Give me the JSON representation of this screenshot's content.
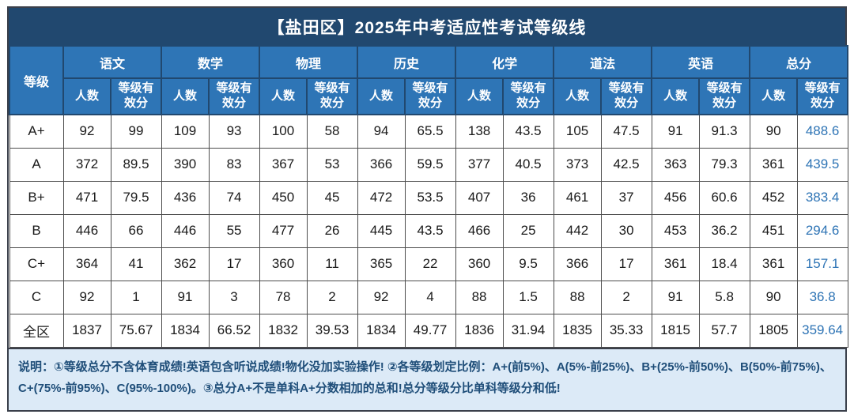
{
  "title": "【盐田区】2025年中考适应性考试等级线",
  "colors": {
    "title_bar": "#21486F",
    "header_bg": "#2E75B6",
    "header_border": "#21486F",
    "footer_bg": "#DCEAF7",
    "footer_text": "#1F4E79",
    "total_score_text": "#2E74B5"
  },
  "table": {
    "grade_header": "等级",
    "subjects": [
      "语文",
      "数学",
      "物理",
      "历史",
      "化学",
      "道法",
      "英语",
      "总分"
    ],
    "sub_headers": [
      "人数",
      "等级有效分"
    ],
    "rows": [
      {
        "grade": "A+",
        "values": [
          [
            "92",
            "99"
          ],
          [
            "109",
            "93"
          ],
          [
            "100",
            "58"
          ],
          [
            "94",
            "65.5"
          ],
          [
            "138",
            "43.5"
          ],
          [
            "105",
            "47.5"
          ],
          [
            "91",
            "91.3"
          ],
          [
            "90",
            "488.6"
          ]
        ]
      },
      {
        "grade": "A",
        "values": [
          [
            "372",
            "89.5"
          ],
          [
            "390",
            "83"
          ],
          [
            "367",
            "53"
          ],
          [
            "366",
            "59.5"
          ],
          [
            "377",
            "40.5"
          ],
          [
            "373",
            "42.5"
          ],
          [
            "363",
            "79.3"
          ],
          [
            "361",
            "439.5"
          ]
        ]
      },
      {
        "grade": "B+",
        "values": [
          [
            "471",
            "79.5"
          ],
          [
            "436",
            "74"
          ],
          [
            "450",
            "45"
          ],
          [
            "472",
            "53.5"
          ],
          [
            "407",
            "36"
          ],
          [
            "461",
            "37"
          ],
          [
            "456",
            "60.6"
          ],
          [
            "452",
            "383.4"
          ]
        ]
      },
      {
        "grade": "B",
        "values": [
          [
            "446",
            "66"
          ],
          [
            "446",
            "55"
          ],
          [
            "477",
            "26"
          ],
          [
            "445",
            "43.5"
          ],
          [
            "466",
            "25"
          ],
          [
            "442",
            "30"
          ],
          [
            "453",
            "36.2"
          ],
          [
            "451",
            "294.6"
          ]
        ]
      },
      {
        "grade": "C+",
        "values": [
          [
            "364",
            "41"
          ],
          [
            "362",
            "17"
          ],
          [
            "360",
            "11"
          ],
          [
            "365",
            "22"
          ],
          [
            "360",
            "9.5"
          ],
          [
            "366",
            "17"
          ],
          [
            "361",
            "18.4"
          ],
          [
            "361",
            "157.1"
          ]
        ]
      },
      {
        "grade": "C",
        "values": [
          [
            "92",
            "1"
          ],
          [
            "91",
            "3"
          ],
          [
            "78",
            "2"
          ],
          [
            "92",
            "4"
          ],
          [
            "88",
            "1.5"
          ],
          [
            "88",
            "2"
          ],
          [
            "91",
            "5.8"
          ],
          [
            "90",
            "36.8"
          ]
        ]
      },
      {
        "grade": "全区",
        "values": [
          [
            "1837",
            "75.67"
          ],
          [
            "1834",
            "66.52"
          ],
          [
            "1832",
            "39.53"
          ],
          [
            "1834",
            "49.77"
          ],
          [
            "1836",
            "31.94"
          ],
          [
            "1835",
            "35.33"
          ],
          [
            "1815",
            "57.7"
          ],
          [
            "1805",
            "359.64"
          ]
        ]
      }
    ]
  },
  "footer": {
    "note": "说明：①等级总分不含体育成绩!英语包含听说成绩!物化没加实验操作! ②各等级划定比例：A+(前5%)、A(5%-前25%)、B+(25%-前50%)、B(50%-前75%)、C+(75%-前95%)、C(95%-100%)。③总分A+不是单科A+分数相加的总和!总分等级分比单科等级分和低!"
  }
}
